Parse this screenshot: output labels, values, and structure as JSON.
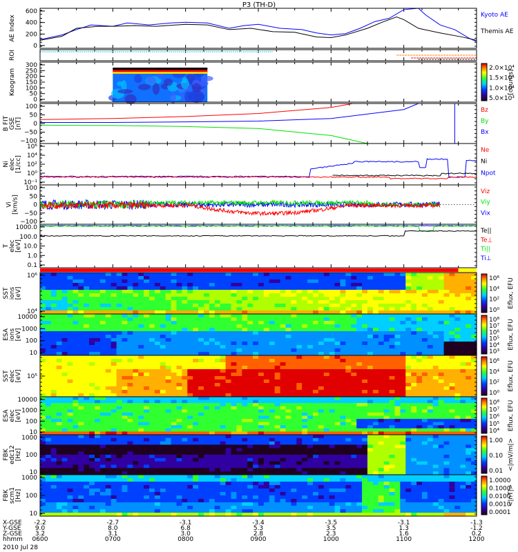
{
  "title": "P3 (TH-D)",
  "colors": {
    "red": "#ff0000",
    "green": "#00e000",
    "blue": "#0000ff",
    "black": "#000000",
    "cyan": "#00c8ff",
    "orange": "#ff8000"
  },
  "chart_data": [
    {
      "type": "line",
      "ylabel": "AE Index",
      "ylim": [
        0,
        600
      ],
      "yticks": [
        "600",
        "400",
        "200",
        "0"
      ],
      "legend": [
        "Kyoto AE",
        "Themis AE"
      ],
      "series": [
        {
          "name": "Kyoto AE",
          "color": "#0000ff",
          "x": [
            6.0,
            6.3,
            6.5,
            6.7,
            7.0,
            7.2,
            7.5,
            7.8,
            8.0,
            8.3,
            8.6,
            8.8,
            9.0,
            9.3,
            9.6,
            9.8,
            10.0,
            10.2,
            10.4,
            10.6,
            10.8,
            11.0,
            11.2,
            11.3,
            11.5,
            11.7,
            11.9,
            12.0
          ],
          "y": [
            130,
            200,
            280,
            350,
            330,
            380,
            350,
            380,
            390,
            380,
            300,
            340,
            360,
            300,
            280,
            230,
            200,
            220,
            300,
            400,
            450,
            580,
            600,
            500,
            350,
            280,
            150,
            100
          ]
        },
        {
          "name": "Themis AE",
          "color": "#000000",
          "x": [
            6.0,
            6.3,
            6.5,
            6.8,
            7.0,
            7.3,
            7.6,
            8.0,
            8.3,
            8.6,
            8.9,
            9.2,
            9.5,
            9.8,
            10.0,
            10.2,
            10.5,
            10.7,
            10.9,
            11.0,
            11.2,
            11.5,
            11.8,
            12.0
          ],
          "y": [
            120,
            180,
            300,
            330,
            330,
            340,
            330,
            360,
            350,
            280,
            300,
            250,
            240,
            170,
            160,
            200,
            300,
            390,
            470,
            430,
            300,
            230,
            170,
            120
          ]
        }
      ]
    },
    {
      "type": "line",
      "ylabel": "ROI"
    },
    {
      "type": "heatmap",
      "ylabel": "Keogram",
      "yticks": [
        "300",
        "250",
        "200",
        "150",
        "100",
        "50",
        "0"
      ],
      "colorbar": [
        "2.0×10⁴",
        "1.5×10⁴",
        "1.0×10⁴",
        "5.0×10³"
      ],
      "colorbar_label": "[counts]"
    },
    {
      "type": "line",
      "ylabel": "B FIT",
      "ylabel2": "GSE",
      "yunit": "[nT]",
      "ylim": [
        -100,
        100
      ],
      "yticks": [
        "100",
        "50",
        "0",
        "−50",
        "−100"
      ],
      "legend": [
        "Bz",
        "By",
        "Bx"
      ],
      "series": [
        {
          "name": "Bz",
          "color": "#ff0000",
          "x": [
            6,
            7,
            8,
            9,
            10,
            10.3
          ],
          "y": [
            20,
            25,
            35,
            50,
            80,
            100
          ]
        },
        {
          "name": "By",
          "color": "#00e000",
          "x": [
            6,
            7,
            8,
            9,
            10,
            10.5
          ],
          "y": [
            -8,
            -10,
            -15,
            -25,
            -60,
            -100
          ]
        },
        {
          "name": "Bx",
          "color": "#0000ff",
          "x": [
            6,
            7,
            8,
            9,
            10,
            11,
            11.2,
            11.7,
            11.7
          ],
          "y": [
            5,
            5,
            8,
            12,
            25,
            70,
            100,
            100,
            -100
          ]
        }
      ]
    },
    {
      "type": "line",
      "ylabel": "Ni",
      "ylabel2": "elec",
      "yunit": "[1/cc]",
      "yscale": "log",
      "ylim": [
        -1,
        6
      ],
      "yticks": [
        "10⁶",
        "10⁴",
        "10²",
        "10⁰",
        "10⁻¹"
      ],
      "legend": [
        "Ne",
        "Ni",
        "Npot"
      ]
    },
    {
      "type": "line",
      "ylabel": "Vi",
      "yunit": "[km/s]",
      "ylim": [
        -100,
        100
      ],
      "yticks": [
        "100",
        "50",
        "0",
        "−50",
        "−100"
      ],
      "legend": [
        "Viz",
        "Viy",
        "Vix"
      ]
    },
    {
      "type": "line",
      "ylabel": "T",
      "ylabel2": "elec",
      "yunit": "[eV]",
      "yscale": "log",
      "yticks": [
        "1000.0",
        "100.0",
        "10.0",
        "1.0",
        "0.1"
      ],
      "legend": [
        "Te||",
        "Te⊥",
        "Ti||",
        "Ti⊥"
      ]
    },
    {
      "type": "heatmap",
      "ylabel": "SST",
      "ylabel2": "ions",
      "yunit": "[eV]",
      "yticks": [
        "10⁶",
        "10⁴"
      ],
      "colorbar": [
        "10⁶",
        "10⁴",
        "10²",
        "10⁰"
      ],
      "colorbar_label": "Eflux, EFU"
    },
    {
      "type": "heatmap",
      "ylabel": "ESA",
      "ylabel2": "ions",
      "yunit": "[eV]",
      "yticks": [
        "10000",
        "1000",
        "100",
        "10"
      ],
      "colorbar": [
        "10⁸",
        "10⁷",
        "10⁶",
        "10⁵",
        "10⁴",
        "10³"
      ],
      "colorbar_label": "Eflux, EFU"
    },
    {
      "type": "heatmap",
      "ylabel": "SST",
      "ylabel2": "elec",
      "yunit": "[eV]",
      "yticks": [
        "10⁵"
      ],
      "colorbar": [
        "10⁶",
        "10⁴",
        "10²",
        "10⁰"
      ],
      "colorbar_label": "Eflux, EFU"
    },
    {
      "type": "heatmap",
      "ylabel": "ESA",
      "ylabel2": "elec",
      "yunit": "[eV]",
      "yticks": [
        "10000",
        "1000",
        "100",
        "10"
      ],
      "colorbar": [
        "10⁸",
        "10⁷",
        "10⁶",
        "10⁵",
        "10⁴"
      ],
      "colorbar_label": "Eflux, EFU"
    },
    {
      "type": "heatmap",
      "ylabel": "FBK",
      "ylabel2": "edc12",
      "yunit": "[Hz]",
      "yticks": [
        "1000",
        "100",
        "10"
      ],
      "colorbar": [
        "1.00",
        "0.10",
        "0.01"
      ],
      "colorbar_label": "<|mV/m|>"
    },
    {
      "type": "heatmap",
      "ylabel": "FBK",
      "ylabel2": "scm1",
      "yunit": "[Hz]",
      "yticks": [
        "1000",
        "100",
        "10"
      ],
      "colorbar": [
        "1.0000",
        "0.1000",
        "0.0100",
        "0.0010",
        "0.0001"
      ],
      "colorbar_label": "<|nT|>"
    }
  ],
  "xaxis": {
    "row_labels": [
      "X-GSE",
      "Y-GSE",
      "Z-GSE",
      "hhmm"
    ],
    "date": "2010 Jul 28",
    "xlim_hours": [
      6,
      12
    ],
    "ticks": [
      {
        "t": 6,
        "x_gse": "-2.2",
        "y_gse": "9.0",
        "z_gse": "3.2",
        "hhmm": "0600"
      },
      {
        "t": 7,
        "x_gse": "-2.7",
        "y_gse": "8.0",
        "z_gse": "3.1",
        "hhmm": "0700"
      },
      {
        "t": 8,
        "x_gse": "-3.1",
        "y_gse": "6.8",
        "z_gse": "3.0",
        "hhmm": "0800"
      },
      {
        "t": 9,
        "x_gse": "-3.4",
        "y_gse": "5.3",
        "z_gse": "2.8",
        "hhmm": "0900"
      },
      {
        "t": 10,
        "x_gse": "-3.5",
        "y_gse": "3.5",
        "z_gse": "2.3",
        "hhmm": "1000"
      },
      {
        "t": 11,
        "x_gse": "-3.1",
        "y_gse": "1.3",
        "z_gse": "1.6",
        "hhmm": "1100"
      },
      {
        "t": 12,
        "x_gse": "-1.3",
        "y_gse": "-1.2",
        "z_gse": "0.2",
        "hhmm": "1200"
      }
    ]
  }
}
